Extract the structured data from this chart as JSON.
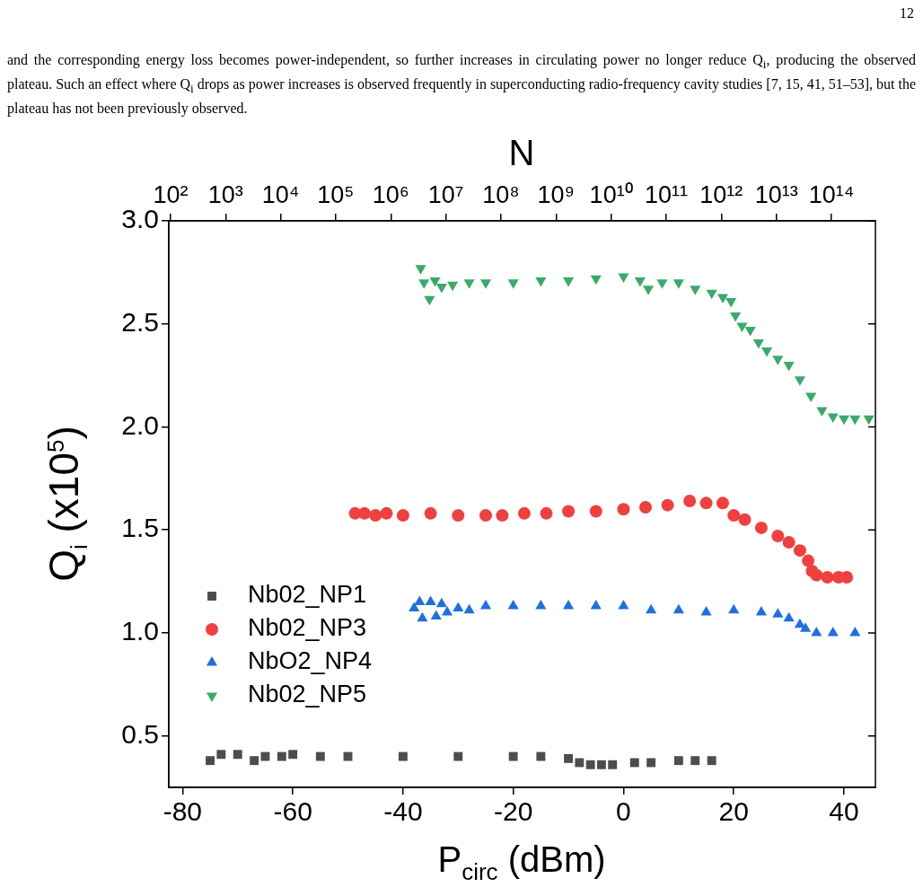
{
  "chart_data": {
    "type": "scatter",
    "xlabel": "P$_{circ}$ (dBm)",
    "ylabel": "Q$_{i}$ (x10$^{5}$)",
    "x2label": "N",
    "annotations": [
      "12",
      "and the corresponding energy loss becomes power-independent, so further increases in circulating power no longer reduce Q$_{i}$, producing the observed plateau. Such an effect where Q$_{i}$ drops as power increases is observed frequently in superconducting radio-frequency cavity studies [7, 15, 41, 51–53], but the plateau has not been previously observed."
    ],
    "xlim": [
      -82.5,
      45.7
    ],
    "xticks": [
      -80,
      -60,
      -40,
      -20,
      0,
      20,
      40
    ],
    "ylim": [
      0.25,
      3.0
    ],
    "yticks": [
      {
        "value": 0.5,
        "label": "0.5"
      },
      {
        "value": 1.0,
        "label": "1.0"
      },
      {
        "value": 1.5,
        "label": "1.5"
      },
      {
        "value": 2.0,
        "label": "2.0"
      },
      {
        "value": 2.5,
        "label": "2.5"
      },
      {
        "value": 3.0,
        "label": "3.0"
      }
    ],
    "x2lim": [
      93,
      630000000000000.0
    ],
    "x2ticks": [
      {
        "value": 100.0,
        "label": "10²"
      },
      {
        "value": 1000.0,
        "label": "10³"
      },
      {
        "value": 10000.0,
        "label": "10⁴"
      },
      {
        "value": 100000.0,
        "label": "10⁵"
      },
      {
        "value": 1000000.0,
        "label": "10⁶"
      },
      {
        "value": 10000000.0,
        "label": "10⁷"
      },
      {
        "value": 100000000.0,
        "label": "10⁸"
      },
      {
        "value": 1000000000.0,
        "label": "10⁹"
      },
      {
        "value": 10000000000.0,
        "label": "10¹⁰"
      },
      {
        "value": 100000000000.0,
        "label": "10¹¹"
      },
      {
        "value": 1000000000000.0,
        "label": "10¹²"
      },
      {
        "value": 10000000000000.0,
        "label": "10¹³"
      },
      {
        "value": 100000000000000.0,
        "label": "10¹⁴"
      }
    ],
    "grid": false,
    "legend": "bottom left",
    "log": "x2",
    "series": [
      {
        "name": "Nb02_NP1",
        "color": "#4d4d4d",
        "marker": "square",
        "x": [
          -75,
          -73,
          -70,
          -67,
          -65,
          -62,
          -60,
          -55,
          -50,
          -40,
          -30,
          -20,
          -15,
          -10,
          -8,
          -6,
          -4,
          -2,
          2,
          5,
          10,
          13,
          16
        ],
        "values": [
          0.38,
          0.41,
          0.41,
          0.38,
          0.4,
          0.4,
          0.41,
          0.4,
          0.4,
          0.4,
          0.4,
          0.4,
          0.4,
          0.39,
          0.37,
          0.36,
          0.36,
          0.36,
          0.37,
          0.37,
          0.38,
          0.38,
          0.38
        ]
      },
      {
        "name": "Nb02_NP3",
        "color": "#ef4040",
        "marker": "circle",
        "x": [
          -48.7,
          -47,
          -45,
          -43,
          -40,
          -35,
          -30,
          -25,
          -22,
          -18,
          -14,
          -10,
          -5,
          0,
          4,
          8,
          12,
          15,
          18,
          20,
          22,
          25,
          28,
          30,
          32,
          33.5,
          34.2,
          35,
          37,
          39,
          40.5
        ],
        "values": [
          1.58,
          1.58,
          1.57,
          1.58,
          1.57,
          1.58,
          1.57,
          1.57,
          1.57,
          1.58,
          1.58,
          1.59,
          1.59,
          1.6,
          1.61,
          1.62,
          1.64,
          1.63,
          1.63,
          1.57,
          1.55,
          1.51,
          1.47,
          1.44,
          1.4,
          1.35,
          1.3,
          1.28,
          1.27,
          1.27,
          1.27
        ]
      },
      {
        "name": "NbO2_NP4",
        "color": "#1f6fe0",
        "marker": "triangle",
        "x": [
          -38,
          -37,
          -36.5,
          -35,
          -34,
          -33,
          -32,
          -30,
          -28,
          -25,
          -20,
          -15,
          -10,
          -5,
          0,
          5,
          10,
          15,
          20,
          25,
          28,
          30,
          32,
          33,
          35,
          38,
          42
        ],
        "values": [
          1.12,
          1.15,
          1.07,
          1.15,
          1.08,
          1.14,
          1.1,
          1.12,
          1.11,
          1.13,
          1.13,
          1.13,
          1.13,
          1.13,
          1.13,
          1.11,
          1.11,
          1.1,
          1.11,
          1.1,
          1.09,
          1.07,
          1.04,
          1.02,
          1.0,
          1.0,
          1.0
        ]
      },
      {
        "name": "Nb02_NP5",
        "color": "#3aaa6a",
        "marker": "triangle-down",
        "x": [
          -36.8,
          -36.2,
          -35.2,
          -34.2,
          -33,
          -31,
          -28,
          -25,
          -20,
          -15,
          -10,
          -5,
          0,
          3,
          4.5,
          7,
          10,
          13,
          16,
          18,
          19.5,
          20.3,
          21.5,
          23,
          24.5,
          26,
          28,
          30,
          32,
          34,
          36,
          38,
          40,
          42,
          44.5
        ],
        "values": [
          2.77,
          2.7,
          2.62,
          2.71,
          2.68,
          2.69,
          2.7,
          2.7,
          2.7,
          2.71,
          2.71,
          2.72,
          2.73,
          2.71,
          2.67,
          2.7,
          2.7,
          2.67,
          2.65,
          2.63,
          2.61,
          2.54,
          2.49,
          2.47,
          2.41,
          2.37,
          2.33,
          2.3,
          2.23,
          2.15,
          2.08,
          2.05,
          2.04,
          2.04,
          2.04
        ]
      }
    ]
  }
}
